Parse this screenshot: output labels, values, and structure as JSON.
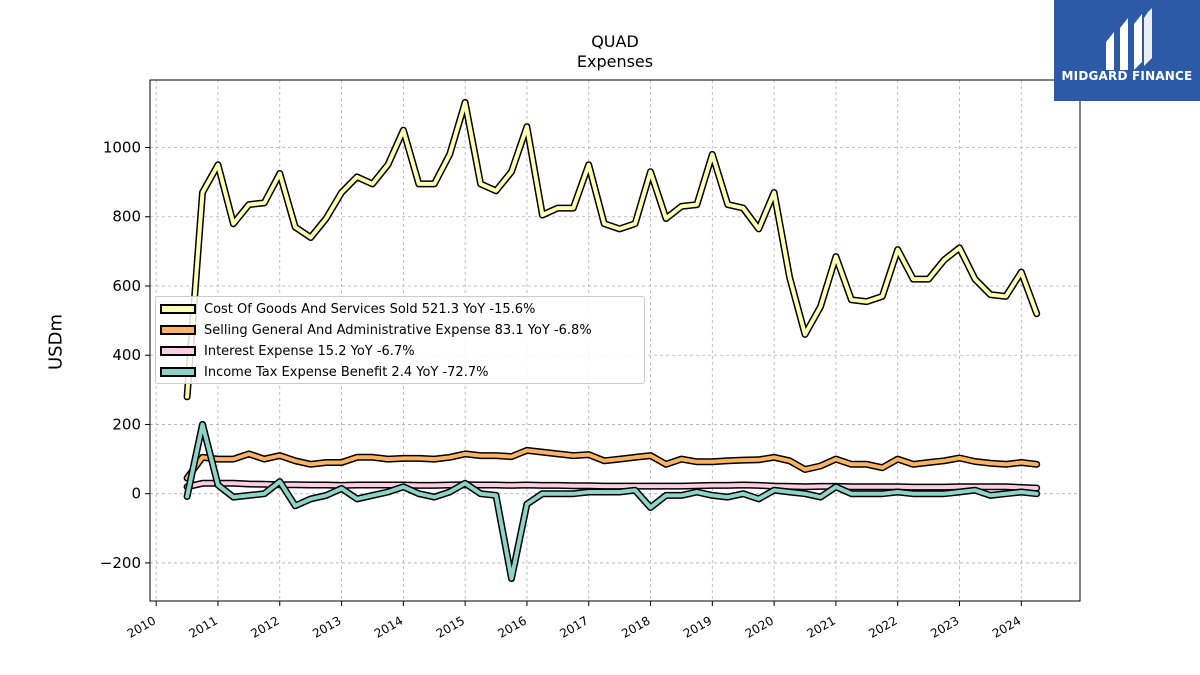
{
  "brand": {
    "name": "MIDGARD FINANCE",
    "logo_color": "#2d5aa6"
  },
  "chart_data": {
    "type": "line",
    "title": "QUAD",
    "subtitle": "Expenses",
    "xlabel": "",
    "ylabel": "USDm",
    "xlim": [
      2009.9,
      2024.95
    ],
    "ylim": [
      -310,
      1195
    ],
    "x_ticks": [
      "2010",
      "2011",
      "2012",
      "2013",
      "2014",
      "2015",
      "2016",
      "2017",
      "2018",
      "2019",
      "2020",
      "2021",
      "2022",
      "2023",
      "2024"
    ],
    "y_ticks": [
      -200,
      0,
      200,
      400,
      600,
      800,
      1000
    ],
    "y_tick_labels": [
      "−200",
      "0",
      "200",
      "400",
      "600",
      "800",
      "1000"
    ],
    "grid": true,
    "legend_position": "center-left",
    "x": [
      2010.5,
      2010.75,
      2011.0,
      2011.25,
      2011.5,
      2011.75,
      2012.0,
      2012.25,
      2012.5,
      2012.75,
      2013.0,
      2013.25,
      2013.5,
      2013.75,
      2014.0,
      2014.25,
      2014.5,
      2014.75,
      2015.0,
      2015.25,
      2015.5,
      2015.75,
      2016.0,
      2016.25,
      2016.5,
      2016.75,
      2017.0,
      2017.25,
      2017.5,
      2017.75,
      2018.0,
      2018.25,
      2018.5,
      2018.75,
      2019.0,
      2019.25,
      2019.5,
      2019.75,
      2020.0,
      2020.25,
      2020.5,
      2020.75,
      2021.0,
      2021.25,
      2021.5,
      2021.75,
      2022.0,
      2022.25,
      2022.5,
      2022.75,
      2023.0,
      2023.25,
      2023.5,
      2023.75,
      2024.0,
      2024.25
    ],
    "series": [
      {
        "name": "Cost Of Goods And Services Sold",
        "legend_label": "Cost Of Goods And Services Sold  521.3 YoY -15.6%",
        "color": "#ffffb3",
        "values": [
          280,
          870,
          950,
          780,
          835,
          840,
          925,
          770,
          740,
          795,
          870,
          915,
          895,
          950,
          1050,
          895,
          895,
          980,
          1130,
          895,
          875,
          930,
          1060,
          805,
          825,
          825,
          950,
          780,
          765,
          780,
          930,
          795,
          830,
          835,
          980,
          835,
          825,
          765,
          870,
          625,
          460,
          540,
          685,
          560,
          555,
          570,
          705,
          620,
          620,
          675,
          710,
          620,
          575,
          570,
          640,
          520
        ]
      },
      {
        "name": "Selling General And Administrative Expense",
        "legend_label": "Selling General And Administrative Expense  83.1 YoY -6.8%",
        "color": "#fdb462",
        "values": [
          45,
          105,
          100,
          100,
          115,
          100,
          110,
          95,
          85,
          90,
          90,
          105,
          105,
          100,
          102,
          102,
          100,
          105,
          115,
          110,
          110,
          107,
          125,
          120,
          115,
          110,
          113,
          95,
          100,
          105,
          110,
          85,
          100,
          92,
          92,
          95,
          97,
          98,
          105,
          95,
          70,
          80,
          100,
          85,
          85,
          75,
          100,
          85,
          90,
          95,
          103,
          93,
          88,
          85,
          90,
          85
        ]
      },
      {
        "name": "Interest Expense",
        "legend_label": "Interest Expense  15.2 YoY -6.7%",
        "color": "#fccde5",
        "values": [
          20,
          30,
          30,
          30,
          28,
          27,
          26,
          26,
          25,
          25,
          24,
          25,
          25,
          25,
          25,
          24,
          24,
          25,
          26,
          25,
          25,
          24,
          25,
          24,
          24,
          23,
          23,
          22,
          22,
          22,
          22,
          22,
          22,
          23,
          24,
          24,
          25,
          24,
          22,
          21,
          20,
          21,
          21,
          20,
          20,
          20,
          20,
          19,
          19,
          19,
          20,
          20,
          20,
          20,
          18,
          16
        ]
      },
      {
        "name": "Income Tax Expense Benefit",
        "legend_label": "Income Tax Expense Benefit  2.4 YoY -72.7%",
        "color": "#8dd3c7",
        "values": [
          -8,
          200,
          25,
          -10,
          -5,
          0,
          35,
          -35,
          -15,
          -5,
          15,
          -15,
          -5,
          5,
          20,
          0,
          -10,
          5,
          30,
          0,
          -5,
          -245,
          -30,
          0,
          0,
          0,
          5,
          5,
          5,
          10,
          -40,
          -5,
          -5,
          5,
          -5,
          -10,
          0,
          -15,
          10,
          5,
          0,
          -10,
          20,
          0,
          0,
          0,
          5,
          0,
          0,
          0,
          5,
          10,
          -5,
          0,
          5,
          0
        ]
      }
    ]
  }
}
